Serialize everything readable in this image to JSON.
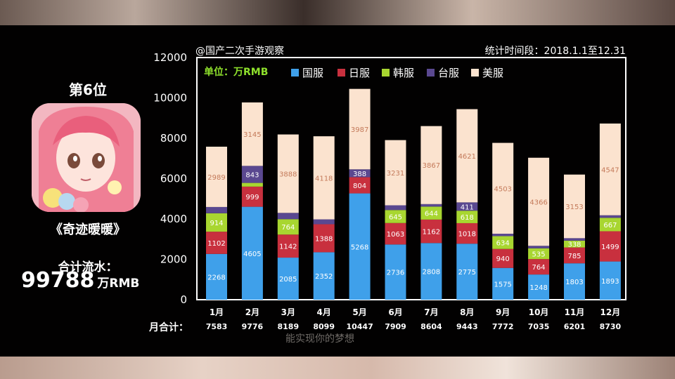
{
  "header": {
    "source": "@国产二次手游观察",
    "period": "统计时间段：2018.1.1至12.31"
  },
  "sidebar": {
    "rank": "第6位",
    "game_name": "《奇迹暖暖》",
    "total_label": "合计流水：",
    "total_value": "99788",
    "total_unit": "万RMB"
  },
  "month_total_label": "月合计：",
  "subtitle": "能实现你的梦想",
  "chart_data": {
    "type": "bar",
    "stacked": true,
    "unit_label": "单位：万RMB",
    "categories": [
      "1月",
      "2月",
      "3月",
      "4月",
      "5月",
      "6月",
      "7月",
      "8月",
      "9月",
      "10月",
      "11月",
      "12月"
    ],
    "series": [
      {
        "name": "国服",
        "color": "#3fa0ea",
        "values": [
          2268,
          4605,
          2085,
          2352,
          5268,
          2736,
          2808,
          2775,
          1575,
          1248,
          1803,
          1893
        ]
      },
      {
        "name": "日服",
        "color": "#c8303e",
        "values": [
          1102,
          999,
          1142,
          1388,
          804,
          1063,
          1162,
          1018,
          940,
          764,
          785,
          1499
        ]
      },
      {
        "name": "韩服",
        "color": "#a8d630",
        "values": [
          914,
          184,
          764,
          0,
          0,
          645,
          644,
          618,
          634,
          535,
          338,
          667
        ]
      },
      {
        "name": "台服",
        "color": "#5a4890",
        "values": [
          310,
          843,
          310,
          241,
          388,
          234,
          123,
          411,
          120,
          122,
          122,
          124
        ]
      },
      {
        "name": "美服",
        "color": "#fbe3cf",
        "values": [
          2989,
          3145,
          3888,
          4118,
          3987,
          3231,
          3867,
          4621,
          4503,
          4366,
          3153,
          4547
        ]
      }
    ],
    "month_totals": [
      "7583",
      "9776",
      "8189",
      "8099",
      "10447",
      "7909",
      "8604",
      "9443",
      "7772",
      "7035",
      "6201",
      "8730"
    ],
    "y_ticks": [
      "0",
      "2000",
      "4000",
      "6000",
      "8000",
      "10000",
      "12000"
    ],
    "ylim": [
      0,
      12000
    ],
    "legend_position": "top"
  }
}
